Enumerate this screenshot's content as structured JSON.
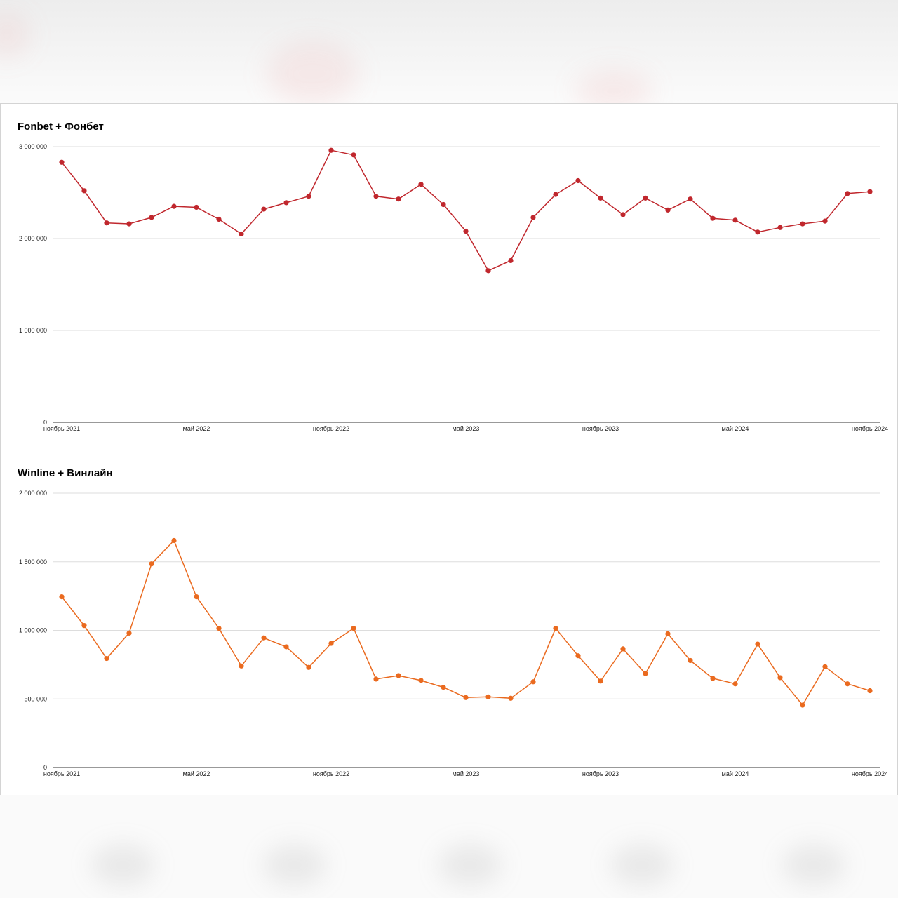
{
  "colors": {
    "fonbet": "#c0272d",
    "winline": "#ea6a1f",
    "grid": "#dddddd",
    "axis": "#333333"
  },
  "chart_data": [
    {
      "type": "line",
      "title": "Fonbet + Фонбет",
      "xlabel": "",
      "ylabel": "",
      "ylim": [
        0,
        3000000
      ],
      "yticks": [
        0,
        1000000,
        2000000,
        3000000
      ],
      "ytick_labels": [
        "0",
        "1 000 000",
        "2 000 000",
        "3 000 000"
      ],
      "x_tick_labels": [
        "ноябрь 2021",
        "май 2022",
        "ноябрь 2022",
        "май 2023",
        "ноябрь 2023",
        "май 2024",
        "ноябрь 2024"
      ],
      "x": [
        "2021-11",
        "2021-12",
        "2022-01",
        "2022-02",
        "2022-03",
        "2022-04",
        "2022-05",
        "2022-06",
        "2022-07",
        "2022-08",
        "2022-09",
        "2022-10",
        "2022-11",
        "2022-12",
        "2023-01",
        "2023-02",
        "2023-03",
        "2023-04",
        "2023-05",
        "2023-06",
        "2023-07",
        "2023-08",
        "2023-09",
        "2023-10",
        "2023-11",
        "2023-12",
        "2024-01",
        "2024-02",
        "2024-03",
        "2024-04",
        "2024-05",
        "2024-06",
        "2024-07",
        "2024-08",
        "2024-09",
        "2024-10",
        "2024-11"
      ],
      "grid": true,
      "legend": "none",
      "series": [
        {
          "values": [
            2830000,
            2520000,
            2170000,
            2160000,
            2230000,
            2350000,
            2340000,
            2210000,
            2050000,
            2320000,
            2390000,
            2460000,
            2960000,
            2910000,
            2460000,
            2430000,
            2590000,
            2370000,
            2080000,
            1650000,
            1760000,
            2230000,
            2480000,
            2630000,
            2440000,
            2260000,
            2440000,
            2310000,
            2430000,
            2220000,
            2200000,
            2070000,
            2120000,
            2160000,
            2190000,
            2490000,
            2510000
          ]
        }
      ]
    },
    {
      "type": "line",
      "title": "Winline + Винлайн",
      "xlabel": "",
      "ylabel": "",
      "ylim": [
        0,
        2000000
      ],
      "yticks": [
        0,
        500000,
        1000000,
        1500000,
        2000000
      ],
      "ytick_labels": [
        "0",
        "500 000",
        "1 000 000",
        "1 500 000",
        "2 000 000"
      ],
      "x_tick_labels": [
        "ноябрь 2021",
        "май 2022",
        "ноябрь 2022",
        "май 2023",
        "ноябрь 2023",
        "май 2024",
        "ноябрь 2024"
      ],
      "x": [
        "2021-11",
        "2021-12",
        "2022-01",
        "2022-02",
        "2022-03",
        "2022-04",
        "2022-05",
        "2022-06",
        "2022-07",
        "2022-08",
        "2022-09",
        "2022-10",
        "2022-11",
        "2022-12",
        "2023-01",
        "2023-02",
        "2023-03",
        "2023-04",
        "2023-05",
        "2023-06",
        "2023-07",
        "2023-08",
        "2023-09",
        "2023-10",
        "2023-11",
        "2023-12",
        "2024-01",
        "2024-02",
        "2024-03",
        "2024-04",
        "2024-05",
        "2024-06",
        "2024-07",
        "2024-08",
        "2024-09",
        "2024-10",
        "2024-11"
      ],
      "grid": true,
      "legend": "none",
      "series": [
        {
          "values": [
            1245000,
            1035000,
            795000,
            980000,
            1485000,
            1655000,
            1245000,
            1015000,
            740000,
            945000,
            880000,
            730000,
            905000,
            1015000,
            645000,
            670000,
            635000,
            585000,
            510000,
            515000,
            505000,
            625000,
            1015000,
            815000,
            630000,
            865000,
            685000,
            975000,
            780000,
            650000,
            610000,
            900000,
            655000,
            455000,
            735000,
            610000,
            560000
          ]
        }
      ]
    }
  ]
}
